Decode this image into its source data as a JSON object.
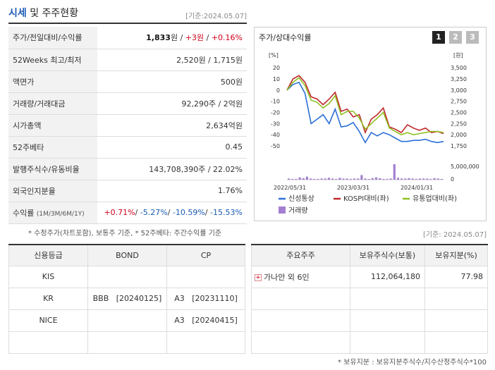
{
  "header": {
    "title_main": "시세",
    "title_rest": "및 주주현황",
    "base_date": "[기준:2024.05.07]"
  },
  "info": [
    {
      "label": "주가/전일대비/수익률",
      "parts": [
        {
          "t": "1,833",
          "c": "bold"
        },
        {
          "t": "원 / ",
          "c": ""
        },
        {
          "t": "+3원",
          "c": "red"
        },
        {
          "t": " / ",
          "c": ""
        },
        {
          "t": "+0.16%",
          "c": "red"
        }
      ]
    },
    {
      "label": "52Weeks 최고/최저",
      "parts": [
        {
          "t": "2,520원 / 1,715원",
          "c": ""
        }
      ]
    },
    {
      "label": "액면가",
      "parts": [
        {
          "t": "500원",
          "c": ""
        }
      ]
    },
    {
      "label": "거래량/거래대금",
      "parts": [
        {
          "t": "92,290주 / 2억원",
          "c": ""
        }
      ]
    },
    {
      "label": "시가총액",
      "parts": [
        {
          "t": "2,634억원",
          "c": ""
        }
      ]
    },
    {
      "label": "52주베타",
      "parts": [
        {
          "t": "0.45",
          "c": ""
        }
      ]
    },
    {
      "label": "발행주식수/유동비율",
      "parts": [
        {
          "t": "143,708,390주 / 22.02%",
          "c": ""
        }
      ]
    },
    {
      "label": "외국인지분율",
      "parts": [
        {
          "t": "1.76%",
          "c": ""
        }
      ]
    },
    {
      "label": "수익률",
      "sub": "(1M/3M/6M/1Y)",
      "parts": [
        {
          "t": "+0.71%",
          "c": "red"
        },
        {
          "t": "/ ",
          "c": ""
        },
        {
          "t": "-5.27%",
          "c": "blue"
        },
        {
          "t": "/ ",
          "c": ""
        },
        {
          "t": "-10.59%",
          "c": "blue"
        },
        {
          "t": "/ ",
          "c": ""
        },
        {
          "t": "-15.53%",
          "c": "blue"
        }
      ]
    }
  ],
  "footnote_left": "* 수정주가(차트포함), 보통주 기준, * 52주베타: 주간수익률 기준",
  "chart": {
    "title": "주가/상대수익률",
    "pages": [
      "1",
      "2",
      "3"
    ],
    "y_left_unit": "[%]",
    "y_right_unit": "[원]",
    "vol_tick_label": "5,000,000",
    "vol_zero_label": "0",
    "legend": {
      "stock": "신성통상",
      "kospi": "KOSPI대비(좌)",
      "industry": "유통업대비(좌)",
      "volume": "거래량"
    },
    "colors": {
      "stock": "#2a6fd6",
      "kospi": "#c0282a",
      "industry": "#8ec021",
      "volume": "#a47fd1"
    }
  },
  "chart_data": {
    "type": "line",
    "x_ticks": [
      "2022/05/31",
      "2023/03/31",
      "2024/01/31"
    ],
    "y_left_ticks": [
      20,
      10,
      0,
      -10,
      -20,
      -30,
      -40,
      -50
    ],
    "y_right_ticks": [
      "3,500",
      "3,250",
      "3,000",
      "2,750",
      "2,500",
      "2,250",
      "2,000",
      "1,750"
    ],
    "ylim_left": [
      -55,
      22
    ],
    "series": [
      {
        "name": "신성통상",
        "values": [
          0,
          5,
          7,
          -3,
          -30,
          -26,
          -22,
          -30,
          -17,
          -33,
          -32,
          -29,
          -37,
          -47,
          -38,
          -41,
          -38,
          -40,
          -43,
          -46,
          -46,
          -45,
          -45,
          -44,
          -46,
          -47,
          -46
        ]
      },
      {
        "name": "KOSPI대비(좌)",
        "values": [
          0,
          10,
          13,
          7,
          -6,
          -8,
          -13,
          -8,
          -2,
          -19,
          -17,
          -24,
          -22,
          -38,
          -26,
          -22,
          -16,
          -33,
          -35,
          -38,
          -31,
          -34,
          -36,
          -34,
          -38,
          -37,
          -39
        ]
      },
      {
        "name": "유통업대비(좌)",
        "values": [
          0,
          7,
          11,
          4,
          -9,
          -11,
          -16,
          -12,
          -5,
          -22,
          -19,
          -19,
          -25,
          -35,
          -30,
          -25,
          -20,
          -34,
          -37,
          -40,
          -38,
          -40,
          -39,
          -38,
          -37,
          -37,
          -38
        ]
      }
    ],
    "volume": [
      3,
      2,
      2,
      6,
      4,
      8,
      3,
      2,
      2,
      3,
      3,
      5,
      3,
      2,
      5,
      3,
      3,
      2,
      3,
      3,
      12,
      3,
      2,
      4,
      6,
      4,
      2,
      2,
      3,
      40,
      5,
      3,
      3,
      4,
      3,
      2,
      3,
      3,
      3,
      2,
      4,
      3,
      2
    ]
  },
  "base_date_right": "[기준: 2024.05.07]",
  "credit": {
    "headers": [
      "신용등급",
      "BOND",
      "CP"
    ],
    "rows": [
      [
        "KIS",
        "",
        ""
      ],
      [
        "KR",
        "BBB   [20240125]",
        "A3   [20231110]"
      ],
      [
        "NICE",
        "",
        "A3   [20240415]"
      ],
      [
        "",
        "",
        ""
      ]
    ]
  },
  "holders": {
    "headers": [
      "주요주주",
      "보유주식수(보통)",
      "보유지분(%)"
    ],
    "rows": [
      [
        "가나안 외 6인",
        "112,064,180",
        "77.98"
      ],
      [
        "",
        "",
        ""
      ],
      [
        "",
        "",
        ""
      ],
      [
        "",
        "",
        ""
      ]
    ]
  },
  "footnote_right": "* 보유지분 : 보유지분주식수/지수산정주식수*100"
}
